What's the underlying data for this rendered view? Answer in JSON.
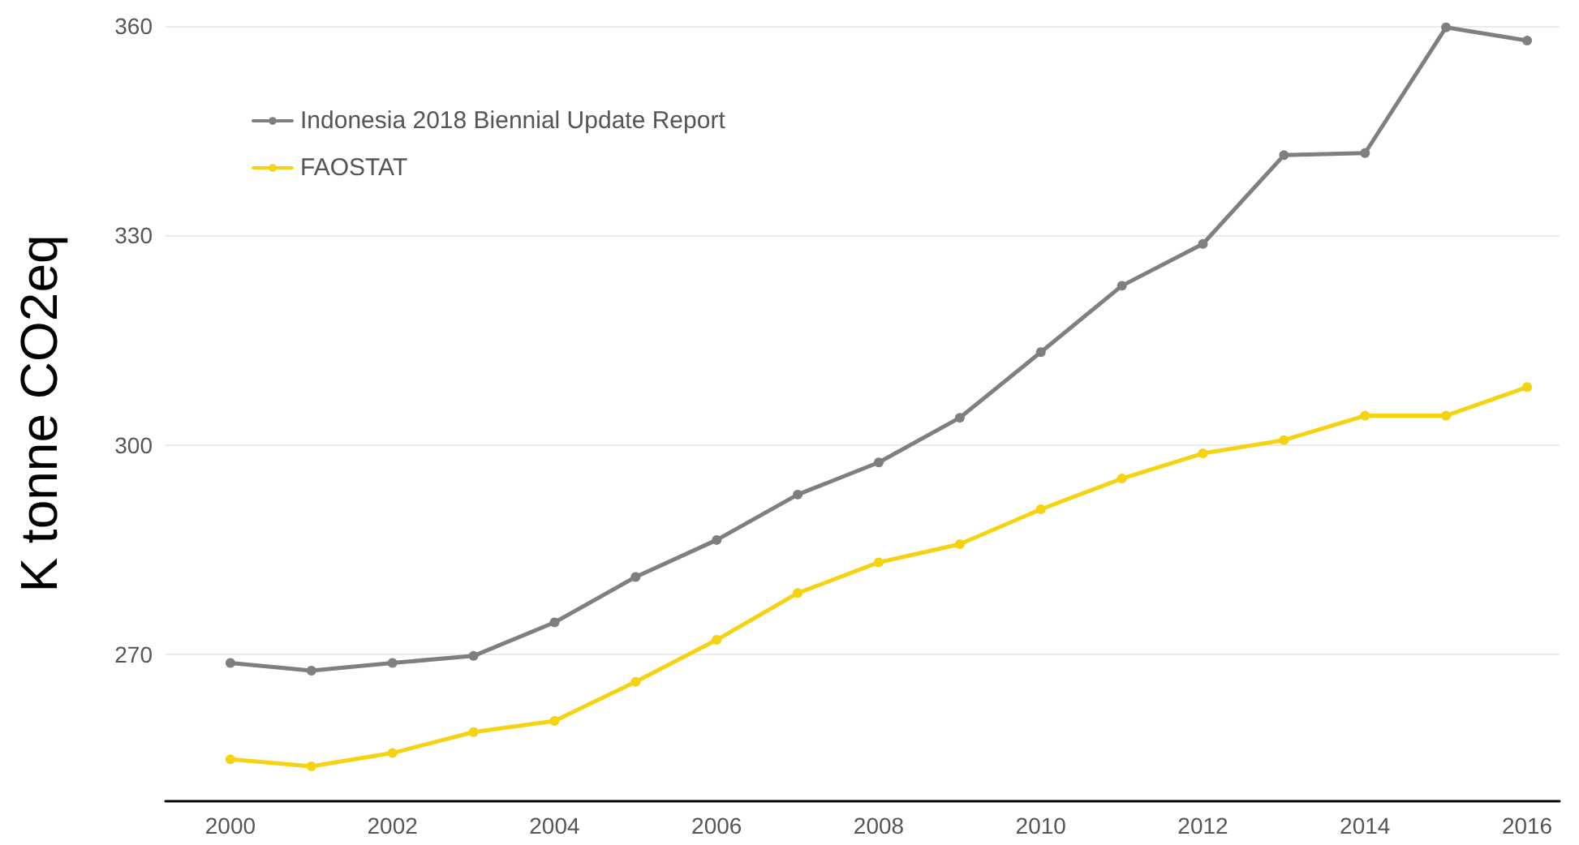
{
  "chart_data": {
    "type": "line",
    "ylabel": "K tonne CO2eq",
    "x": [
      2000,
      2001,
      2002,
      2003,
      2004,
      2005,
      2006,
      2007,
      2008,
      2009,
      2010,
      2011,
      2012,
      2013,
      2014,
      2015,
      2016
    ],
    "series": [
      {
        "name": "Indonesia 2018 Biennial Update Report",
        "color": "#7f7f7f",
        "values": [
          268.8,
          267.7,
          268.8,
          269.8,
          274.6,
          281.1,
          286.4,
          292.9,
          297.5,
          303.9,
          313.3,
          322.8,
          328.8,
          341.5,
          341.8,
          359.8,
          357.9
        ]
      },
      {
        "name": "FAOSTAT",
        "color": "#f5d311",
        "values": [
          255.0,
          254.0,
          255.9,
          258.9,
          260.5,
          266.1,
          272.1,
          278.8,
          283.2,
          285.8,
          290.8,
          295.2,
          298.8,
          300.7,
          304.2,
          304.2,
          308.3
        ]
      }
    ],
    "xlim": [
      1999.2,
      2016.4
    ],
    "xticks": [
      2000,
      2002,
      2004,
      2006,
      2008,
      2010,
      2012,
      2014,
      2016
    ],
    "ylim": [
      249,
      360
    ],
    "yticks": [
      270,
      300,
      330,
      360
    ],
    "grid": "y",
    "legend": "top left",
    "marker": "circle",
    "line_style": "solid"
  }
}
